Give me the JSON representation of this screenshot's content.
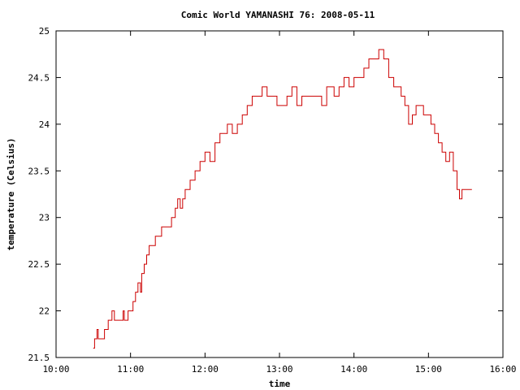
{
  "chart_data": {
    "type": "line",
    "title": "Comic World YAMANASHI 76: 2008-05-11",
    "xlabel": "time",
    "ylabel": "temperature (Celsius)",
    "xlim": [
      "10:00",
      "16:00"
    ],
    "ylim": [
      21.5,
      25
    ],
    "x_ticks": [
      "10:00",
      "11:00",
      "12:00",
      "13:00",
      "14:00",
      "15:00",
      "16:00"
    ],
    "y_ticks": [
      "21.5",
      "22",
      "22.5",
      "23",
      "23.5",
      "24",
      "24.5",
      "25"
    ],
    "grid": false,
    "line_color": "#cc0000",
    "series": [
      {
        "x": [
          "10:30",
          "10:31",
          "10:32",
          "10:33",
          "10:34",
          "10:35",
          "10:37",
          "10:39",
          "10:40",
          "10:42",
          "10:44",
          "10:45",
          "10:47",
          "10:49",
          "10:52",
          "10:54",
          "10:55",
          "10:58",
          "11:00",
          "11:02",
          "11:04",
          "11:06",
          "11:08",
          "11:09",
          "11:11",
          "11:13",
          "11:15",
          "11:17",
          "11:20",
          "11:25",
          "11:30",
          "11:33",
          "11:36",
          "11:38",
          "11:40",
          "11:42",
          "11:44",
          "11:46",
          "11:48",
          "11:52",
          "11:56",
          "12:00",
          "12:04",
          "12:08",
          "12:12",
          "12:15",
          "12:18",
          "12:22",
          "12:26",
          "12:30",
          "12:34",
          "12:38",
          "12:42",
          "12:46",
          "12:50",
          "12:54",
          "12:58",
          "13:02",
          "13:06",
          "13:10",
          "13:14",
          "13:18",
          "13:22",
          "13:26",
          "13:30",
          "13:34",
          "13:38",
          "13:40",
          "13:44",
          "13:48",
          "13:52",
          "13:56",
          "14:00",
          "14:04",
          "14:08",
          "14:12",
          "14:16",
          "14:20",
          "14:24",
          "14:28",
          "14:32",
          "14:35",
          "14:38",
          "14:41",
          "14:44",
          "14:47",
          "14:50",
          "14:53",
          "14:56",
          "14:59",
          "15:02",
          "15:05",
          "15:08",
          "15:11",
          "15:14",
          "15:17",
          "15:20",
          "15:23",
          "15:25",
          "15:27",
          "15:30",
          "15:33",
          "15:35"
        ],
        "values": [
          21.6,
          21.7,
          21.7,
          21.8,
          21.7,
          21.7,
          21.7,
          21.8,
          21.8,
          21.9,
          21.9,
          22.0,
          21.9,
          21.9,
          21.9,
          22.0,
          21.9,
          22.0,
          22.0,
          22.1,
          22.2,
          22.3,
          22.2,
          22.4,
          22.5,
          22.6,
          22.7,
          22.7,
          22.8,
          22.9,
          22.9,
          23.0,
          23.1,
          23.2,
          23.1,
          23.2,
          23.3,
          23.3,
          23.4,
          23.5,
          23.6,
          23.7,
          23.6,
          23.8,
          23.9,
          23.9,
          24.0,
          23.9,
          24.0,
          24.1,
          24.2,
          24.3,
          24.3,
          24.4,
          24.3,
          24.3,
          24.2,
          24.2,
          24.3,
          24.4,
          24.2,
          24.3,
          24.3,
          24.3,
          24.3,
          24.2,
          24.4,
          24.4,
          24.3,
          24.4,
          24.5,
          24.4,
          24.5,
          24.5,
          24.6,
          24.7,
          24.7,
          24.8,
          24.7,
          24.5,
          24.4,
          24.4,
          24.3,
          24.2,
          24.0,
          24.1,
          24.2,
          24.2,
          24.1,
          24.1,
          24.0,
          23.9,
          23.8,
          23.7,
          23.6,
          23.7,
          23.5,
          23.3,
          23.2,
          23.3,
          23.3,
          23.3,
          23.3
        ]
      }
    ]
  }
}
